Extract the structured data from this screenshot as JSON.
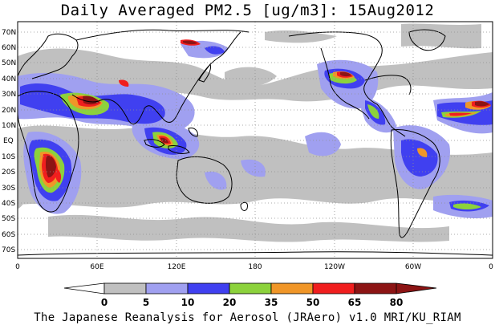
{
  "title": "Daily Averaged PM2.5 [ug/m3]: 15Aug2012",
  "footer": "The Japanese Reanalysis for Aerosol (JRAero) v1.0 MRI/KU_RIAM",
  "map": {
    "latitude_labels": [
      "70N",
      "60N",
      "50N",
      "40N",
      "30N",
      "20N",
      "10N",
      "EQ",
      "10S",
      "20S",
      "30S",
      "40S",
      "50S",
      "60S",
      "70S"
    ],
    "longitude_labels": [
      "0",
      "60E",
      "120E",
      "180",
      "120W",
      "60W",
      "0"
    ]
  },
  "colorbar": {
    "levels": [
      "0",
      "5",
      "10",
      "20",
      "35",
      "50",
      "65",
      "80"
    ],
    "colors": [
      "#ffffff",
      "#c0c0c0",
      "#a0a0f0",
      "#4040f0",
      "#8cd23c",
      "#f09628",
      "#f01e1e",
      "#8c1414"
    ]
  }
}
